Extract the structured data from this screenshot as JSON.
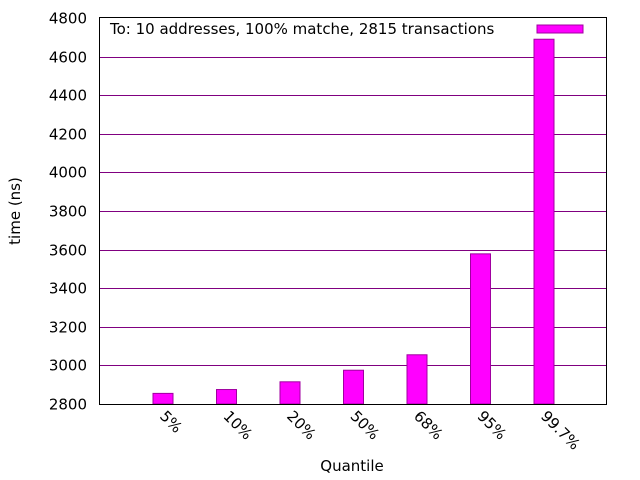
{
  "chart_data": {
    "type": "bar",
    "categories": [
      "5%",
      "10%",
      "20%",
      "50%",
      "68%",
      "95%",
      "99.7%"
    ],
    "series": [
      {
        "name": "To: 10 addresses, 100% matche, 2815 transactions",
        "values": [
          2855,
          2875,
          2915,
          2975,
          3055,
          3578,
          4690
        ],
        "color": "#ff00ff"
      }
    ],
    "xlabel": "Quantile",
    "ylabel": "time (ns)",
    "ylim": [
      2800,
      4800
    ],
    "yticks": [
      2800,
      3000,
      3200,
      3400,
      3600,
      3800,
      4000,
      4200,
      4400,
      4600,
      4800
    ],
    "grid": true,
    "grid_color": "#800080",
    "legend_position": "top-right"
  }
}
